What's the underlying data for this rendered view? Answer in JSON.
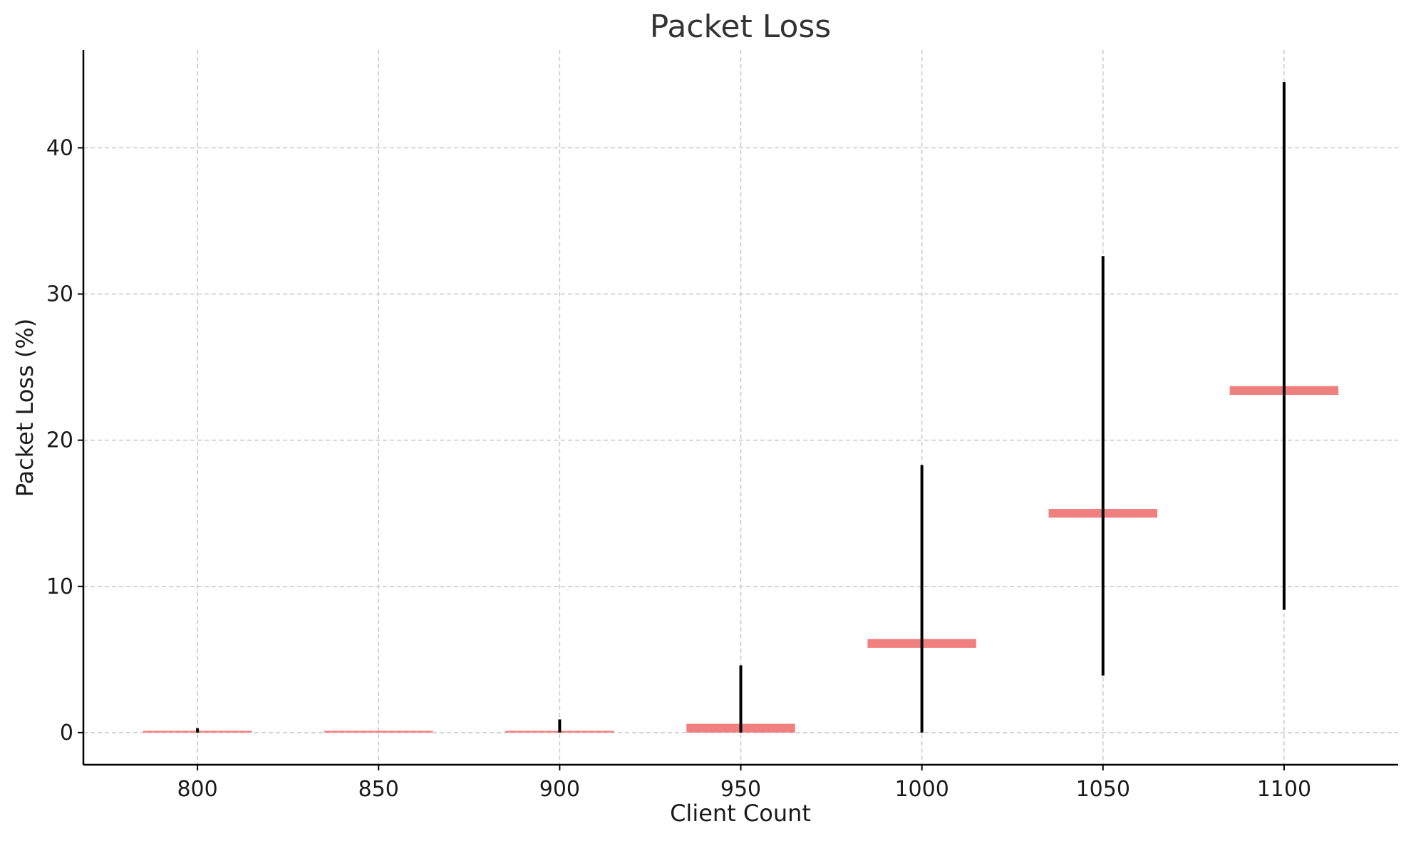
{
  "chart_data": {
    "type": "bar",
    "title": "Packet Loss",
    "xlabel": "Client Count",
    "ylabel": "Packet Loss (%)",
    "x": [
      800,
      850,
      900,
      950,
      1000,
      1050,
      1100
    ],
    "xticks": [
      "800",
      "850",
      "900",
      "950",
      "1000",
      "1050",
      "1100"
    ],
    "yticks": [
      "0",
      "10",
      "20",
      "30",
      "40"
    ],
    "xlim": [
      768.5,
      1131.5
    ],
    "ylim": [
      -2.2,
      46.7
    ],
    "grid": true,
    "series": [
      {
        "values": [
          0.0,
          0.0,
          0.0,
          0.6,
          6.1,
          15.0,
          23.4
        ],
        "error_low": [
          0.0,
          0.0,
          0.0,
          0.0,
          0.0,
          3.9,
          8.4
        ],
        "error_high": [
          0.3,
          0.0,
          0.9,
          4.6,
          18.3,
          32.6,
          44.5
        ],
        "color": "#f08080"
      }
    ],
    "error_color": "#000000"
  }
}
